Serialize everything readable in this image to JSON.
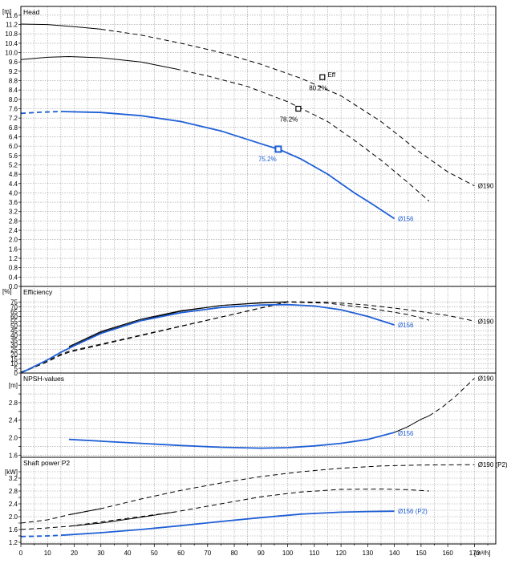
{
  "chart_data": {
    "type": "line",
    "x_axis": {
      "min": 0,
      "max": 178,
      "ticks": [
        0,
        10,
        20,
        30,
        40,
        50,
        60,
        70,
        80,
        90,
        100,
        110,
        120,
        130,
        140,
        150,
        160,
        170
      ],
      "unit": "[m³/h]"
    },
    "colors": {
      "black": "#000000",
      "blue": "#1f5fd6"
    },
    "panels": [
      {
        "id": "head",
        "title": "Head",
        "unit": "[m]",
        "ylim": [
          0,
          11.7
        ],
        "yticks": [
          0,
          0.4,
          0.8,
          1.2,
          1.6,
          2.0,
          2.4,
          2.8,
          3.2,
          3.6,
          4.0,
          4.4,
          4.8,
          5.2,
          5.6,
          6.0,
          6.4,
          6.8,
          7.2,
          7.6,
          8.0,
          8.4,
          8.8,
          9.2,
          9.6,
          10.0,
          10.4,
          10.8,
          11.2,
          11.6
        ],
        "ytick_labels": [
          "0.0",
          "0.4",
          "0.8",
          "1.2",
          "1.6",
          "2.0",
          "2.4",
          "2.8",
          "3.2",
          "3.6",
          "4.0",
          "4.4",
          "4.8",
          "5.2",
          "5.6",
          "6.0",
          "6.4",
          "6.8",
          "7.2",
          "7.6",
          "8.0",
          "8.4",
          "8.8",
          "9.2",
          "9.6",
          "10.0",
          "10.4",
          "10.8",
          "11.2",
          "11.6"
        ],
        "series": [
          {
            "name": "Ø190",
            "color": "black",
            "solid": [
              [
                0,
                11.22
              ],
              [
                10,
                11.2
              ],
              [
                20,
                11.11
              ],
              [
                30,
                11.0
              ]
            ],
            "dashed": [
              [
                30,
                11.0
              ],
              [
                45,
                10.75
              ],
              [
                60,
                10.4
              ],
              [
                75,
                10.0
              ],
              [
                90,
                9.5
              ],
              [
                105,
                8.9
              ],
              [
                120,
                8.15
              ],
              [
                135,
                7.05
              ],
              [
                150,
                5.7
              ],
              [
                160,
                4.9
              ],
              [
                170,
                4.3
              ]
            ],
            "label": "Ø190",
            "label_at": [
              171,
              4.3
            ]
          },
          {
            "name": "",
            "color": "black",
            "solid": [
              [
                0,
                9.7
              ],
              [
                10,
                9.8
              ],
              [
                18,
                9.83
              ],
              [
                30,
                9.78
              ],
              [
                45,
                9.6
              ],
              [
                58,
                9.3
              ]
            ],
            "dashed": [
              [
                58,
                9.3
              ],
              [
                70,
                9.0
              ],
              [
                85,
                8.55
              ],
              [
                100,
                7.9
              ],
              [
                115,
                7.05
              ],
              [
                125,
                6.25
              ],
              [
                135,
                5.4
              ],
              [
                145,
                4.45
              ],
              [
                153,
                3.65
              ]
            ]
          },
          {
            "name": "Ø156",
            "color": "blue",
            "dashed": [
              [
                0,
                7.4
              ],
              [
                7,
                7.45
              ],
              [
                15,
                7.48
              ]
            ],
            "solid": [
              [
                15,
                7.48
              ],
              [
                30,
                7.44
              ],
              [
                45,
                7.3
              ],
              [
                60,
                7.05
              ],
              [
                75,
                6.65
              ],
              [
                90,
                6.1
              ],
              [
                97,
                5.85
              ],
              [
                105,
                5.45
              ],
              [
                115,
                4.8
              ],
              [
                125,
                4.0
              ],
              [
                132,
                3.5
              ],
              [
                140,
                2.9
              ]
            ],
            "label": "Ø156",
            "label_at": [
              141,
              2.9
            ]
          }
        ],
        "markers": [
          {
            "x": 113,
            "y": 8.95,
            "color": "black",
            "label": "80.2%",
            "text_at": [
              108,
              8.5
            ]
          },
          {
            "x": 104,
            "y": 7.6,
            "color": "black",
            "label": "78.2%",
            "text_at": [
              97,
              7.15
            ]
          },
          {
            "x": 96.5,
            "y": 5.87,
            "color": "blue",
            "label": "75.2%",
            "text_at": [
              89,
              5.45
            ]
          }
        ],
        "annotations": [
          {
            "text": "Eff",
            "at": [
              115,
              9.05
            ],
            "color": "black"
          }
        ]
      },
      {
        "id": "efficiency",
        "title": "Efficiency",
        "unit": "[%]",
        "ylim": [
          0,
          79
        ],
        "yticks": [
          0,
          5,
          10,
          15,
          20,
          25,
          30,
          35,
          40,
          45,
          50,
          55,
          60,
          65,
          70,
          75
        ],
        "ytick_labels": [
          "0",
          "5",
          "10",
          "15",
          "20",
          "25",
          "30",
          "35",
          "40",
          "45",
          "50",
          "55",
          "60",
          "65",
          "70",
          "75"
        ],
        "series": [
          {
            "name": "Ø190",
            "color": "black",
            "solid": [
              [
                18,
                27
              ],
              [
                30,
                43
              ],
              [
                45,
                56
              ],
              [
                60,
                65.5
              ],
              [
                75,
                71.5
              ],
              [
                90,
                74.5
              ],
              [
                100,
                75.5
              ]
            ],
            "dashed": [
              [
                0,
                0
              ],
              [
                5,
                6
              ],
              [
                10,
                12
              ],
              [
                15,
                19
              ],
              [
                18,
                22
              ],
              [
                100,
                75.5
              ],
              [
                115,
                75
              ],
              [
                130,
                72
              ],
              [
                145,
                67
              ],
              [
                160,
                61
              ],
              [
                170,
                55
              ]
            ],
            "label": "Ø190",
            "label_at": [
              171,
              55
            ]
          },
          {
            "name": "",
            "color": "black",
            "solid": [
              [
                18,
                28
              ],
              [
                30,
                44
              ],
              [
                45,
                57
              ],
              [
                60,
                66
              ],
              [
                75,
                71.5
              ],
              [
                90,
                74.2
              ],
              [
                100,
                75.2
              ]
            ],
            "dashed": [
              [
                0,
                1
              ],
              [
                5,
                6.5
              ],
              [
                10,
                13
              ],
              [
                15,
                20
              ],
              [
                18,
                23
              ],
              [
                100,
                75.2
              ],
              [
                115,
                74
              ],
              [
                130,
                69
              ],
              [
                145,
                62
              ],
              [
                153,
                56
              ]
            ]
          },
          {
            "name": "Ø156",
            "color": "blue",
            "solid": [
              [
                0,
                0
              ],
              [
                5,
                7
              ],
              [
                10,
                14
              ],
              [
                15,
                22
              ],
              [
                20,
                29
              ],
              [
                30,
                42
              ],
              [
                45,
                55.5
              ],
              [
                60,
                64
              ],
              [
                75,
                69.5
              ],
              [
                90,
                72
              ],
              [
                100,
                72.5
              ],
              [
                110,
                71
              ],
              [
                120,
                67
              ],
              [
                130,
                60
              ],
              [
                140,
                51
              ]
            ],
            "label": "Ø156",
            "label_at": [
              141,
              51
            ]
          }
        ],
        "markers": [],
        "annotations": []
      },
      {
        "id": "npsh",
        "title": "NPSH-values",
        "unit": "[m]",
        "ylim": [
          1.55,
          3.35
        ],
        "yticks": [
          1.6,
          1.8,
          2.0,
          2.2,
          2.4,
          2.6,
          2.8,
          3.0,
          3.2
        ],
        "ytick_labels": [
          "1.6",
          "",
          "2.0",
          "",
          "2.4",
          "",
          "2.8",
          "",
          "[m]"
        ],
        "series": [
          {
            "name": "Ø190",
            "color": "black",
            "solid": [
              [
                140,
                2.12
              ],
              [
                145,
                2.25
              ],
              [
                150,
                2.42
              ],
              [
                153,
                2.5
              ]
            ],
            "dashed": [
              [
                153,
                2.5
              ],
              [
                158,
                2.7
              ],
              [
                163,
                2.95
              ],
              [
                170,
                3.36
              ]
            ],
            "label": "Ø190",
            "label_at": [
              171,
              3.36
            ]
          },
          {
            "name": "Ø156",
            "color": "blue",
            "solid": [
              [
                18,
                1.96
              ],
              [
                30,
                1.92
              ],
              [
                45,
                1.87
              ],
              [
                60,
                1.82
              ],
              [
                75,
                1.78
              ],
              [
                90,
                1.76
              ],
              [
                100,
                1.77
              ],
              [
                110,
                1.81
              ],
              [
                120,
                1.87
              ],
              [
                130,
                1.96
              ],
              [
                140,
                2.12
              ]
            ],
            "label": "Ø156",
            "label_at": [
              141,
              2.1
            ]
          }
        ],
        "markers": [],
        "annotations": []
      },
      {
        "id": "power",
        "title": "Shaft power P2",
        "unit": "[kW]",
        "ylim": [
          1.15,
          3.65
        ],
        "yticks": [
          1.2,
          1.4,
          1.6,
          1.8,
          2.0,
          2.2,
          2.4,
          2.6,
          2.8,
          3.0,
          3.2,
          3.4
        ],
        "ytick_labels": [
          "1.2",
          "",
          "1.6",
          "",
          "2.0",
          "",
          "2.4",
          "",
          "2.8",
          "",
          "3.2",
          "[kW]"
        ],
        "series": [
          {
            "name": "Ø190 (P2)",
            "color": "black",
            "solid": [
              [
                18,
                2.06
              ],
              [
                30,
                2.25
              ]
            ],
            "dashed": [
              [
                0,
                1.8
              ],
              [
                10,
                1.9
              ],
              [
                18,
                2.06
              ],
              [
                30,
                2.25
              ],
              [
                45,
                2.55
              ],
              [
                60,
                2.82
              ],
              [
                75,
                3.05
              ],
              [
                90,
                3.25
              ],
              [
                105,
                3.4
              ],
              [
                120,
                3.51
              ],
              [
                135,
                3.58
              ],
              [
                150,
                3.61
              ],
              [
                170,
                3.62
              ]
            ],
            "label": "Ø190 (P2)",
            "label_at": [
              171,
              3.62
            ]
          },
          {
            "name": "",
            "color": "black",
            "solid": [
              [
                18,
                1.7
              ],
              [
                30,
                1.8
              ],
              [
                45,
                1.98
              ],
              [
                58,
                2.15
              ]
            ],
            "dashed": [
              [
                0,
                1.6
              ],
              [
                10,
                1.65
              ],
              [
                18,
                1.7
              ],
              [
                58,
                2.15
              ],
              [
                75,
                2.4
              ],
              [
                90,
                2.62
              ],
              [
                105,
                2.77
              ],
              [
                120,
                2.85
              ],
              [
                135,
                2.86
              ],
              [
                145,
                2.84
              ],
              [
                153,
                2.8
              ]
            ]
          },
          {
            "name": "Ø156 (P2)",
            "color": "blue",
            "dashed": [
              [
                0,
                1.38
              ],
              [
                10,
                1.4
              ],
              [
                15,
                1.42
              ]
            ],
            "solid": [
              [
                15,
                1.42
              ],
              [
                30,
                1.5
              ],
              [
                45,
                1.6
              ],
              [
                60,
                1.72
              ],
              [
                75,
                1.85
              ],
              [
                90,
                1.97
              ],
              [
                105,
                2.08
              ],
              [
                120,
                2.14
              ],
              [
                130,
                2.16
              ],
              [
                140,
                2.17
              ]
            ],
            "label": "Ø156 (P2)",
            "label_at": [
              141,
              2.17
            ]
          }
        ],
        "markers": [],
        "annotations": []
      }
    ]
  }
}
